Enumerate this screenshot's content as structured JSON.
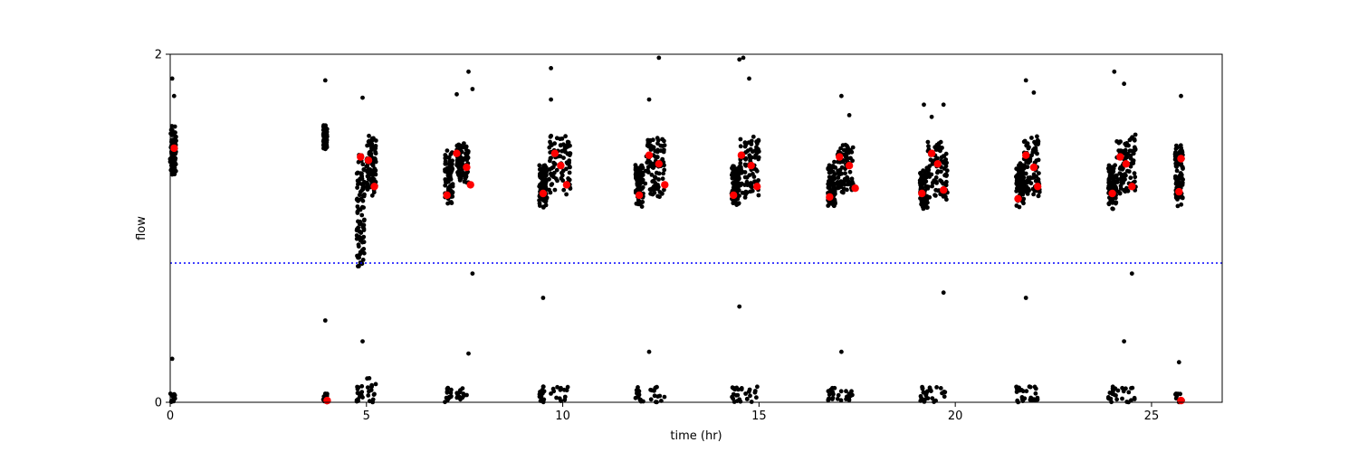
{
  "chart_data": {
    "type": "scatter",
    "xlabel": "time (hr)",
    "ylabel": "flow",
    "xlim": [
      0,
      26.8
    ],
    "ylim": [
      0,
      2
    ],
    "x_ticks": [
      0,
      5,
      10,
      15,
      20,
      25
    ],
    "x_tick_labels": [
      "0",
      "5",
      "10",
      "15",
      "20",
      "25"
    ],
    "y_ticks": [
      0,
      2
    ],
    "y_tick_labels": [
      "0",
      "2"
    ],
    "grid": false,
    "threshold_line": {
      "y": 0.8,
      "style": "dotted",
      "color": "#0000ff"
    },
    "colors": {
      "raw_points": "#000000",
      "mean_points": "#ff0000",
      "threshold": "#0000ff"
    },
    "raw_clusters": [
      {
        "x_start": 0.0,
        "x_end": 0.15,
        "high_min": 1.28,
        "high_max": 1.62,
        "low_max": 0.05
      },
      {
        "x_start": 3.9,
        "x_end": 4.0,
        "high_min": 1.45,
        "high_max": 1.6,
        "low_max": 0.05
      },
      {
        "x_start": 4.75,
        "x_end": 4.95,
        "high_min": 0.72,
        "high_max": 1.5,
        "low_max": 0.1
      },
      {
        "x_start": 5.0,
        "x_end": 5.25,
        "high_min": 1.15,
        "high_max": 1.55,
        "low_max": 0.15
      },
      {
        "x_start": 7.0,
        "x_end": 7.2,
        "high_min": 1.12,
        "high_max": 1.45,
        "low_max": 0.09
      },
      {
        "x_start": 7.3,
        "x_end": 7.6,
        "high_min": 1.25,
        "high_max": 1.5,
        "low_max": 0.09
      },
      {
        "x_start": 9.4,
        "x_end": 9.6,
        "high_min": 1.1,
        "high_max": 1.38,
        "low_max": 0.09
      },
      {
        "x_start": 9.65,
        "x_end": 10.2,
        "high_min": 1.18,
        "high_max": 1.55,
        "low_max": 0.09
      },
      {
        "x_start": 11.85,
        "x_end": 12.05,
        "high_min": 1.1,
        "high_max": 1.38,
        "low_max": 0.09
      },
      {
        "x_start": 12.1,
        "x_end": 12.6,
        "high_min": 1.15,
        "high_max": 1.55,
        "low_max": 0.09
      },
      {
        "x_start": 14.3,
        "x_end": 14.5,
        "high_min": 1.12,
        "high_max": 1.38,
        "low_max": 0.09
      },
      {
        "x_start": 14.5,
        "x_end": 15.0,
        "high_min": 1.15,
        "high_max": 1.55,
        "low_max": 0.09
      },
      {
        "x_start": 16.75,
        "x_end": 16.95,
        "high_min": 1.1,
        "high_max": 1.4,
        "low_max": 0.09
      },
      {
        "x_start": 17.0,
        "x_end": 17.4,
        "high_min": 1.18,
        "high_max": 1.5,
        "low_max": 0.09
      },
      {
        "x_start": 19.1,
        "x_end": 19.3,
        "high_min": 1.1,
        "high_max": 1.35,
        "low_max": 0.09
      },
      {
        "x_start": 19.3,
        "x_end": 19.8,
        "high_min": 1.15,
        "high_max": 1.55,
        "low_max": 0.09
      },
      {
        "x_start": 21.55,
        "x_end": 21.75,
        "high_min": 1.12,
        "high_max": 1.38,
        "low_max": 0.09
      },
      {
        "x_start": 21.75,
        "x_end": 22.15,
        "high_min": 1.15,
        "high_max": 1.55,
        "low_max": 0.09
      },
      {
        "x_start": 23.9,
        "x_end": 24.1,
        "high_min": 1.1,
        "high_max": 1.38,
        "low_max": 0.09
      },
      {
        "x_start": 24.1,
        "x_end": 24.6,
        "high_min": 1.15,
        "high_max": 1.55,
        "low_max": 0.09
      },
      {
        "x_start": 25.6,
        "x_end": 25.8,
        "high_min": 1.12,
        "high_max": 1.5,
        "low_max": 0.05
      }
    ],
    "raw_outliers": [
      {
        "x": 0.05,
        "y": 1.86
      },
      {
        "x": 0.1,
        "y": 1.76
      },
      {
        "x": 0.05,
        "y": 0.25
      },
      {
        "x": 3.95,
        "y": 1.85
      },
      {
        "x": 3.95,
        "y": 0.47
      },
      {
        "x": 4.9,
        "y": 1.75
      },
      {
        "x": 4.9,
        "y": 0.35
      },
      {
        "x": 7.3,
        "y": 1.77
      },
      {
        "x": 7.6,
        "y": 1.9
      },
      {
        "x": 7.7,
        "y": 1.8
      },
      {
        "x": 7.7,
        "y": 0.74
      },
      {
        "x": 7.6,
        "y": 0.28
      },
      {
        "x": 9.7,
        "y": 1.92
      },
      {
        "x": 9.7,
        "y": 1.74
      },
      {
        "x": 9.5,
        "y": 0.6
      },
      {
        "x": 12.2,
        "y": 1.74
      },
      {
        "x": 12.45,
        "y": 1.98
      },
      {
        "x": 12.2,
        "y": 0.29
      },
      {
        "x": 14.5,
        "y": 1.97
      },
      {
        "x": 14.6,
        "y": 1.98
      },
      {
        "x": 14.75,
        "y": 1.86
      },
      {
        "x": 14.5,
        "y": 0.55
      },
      {
        "x": 17.1,
        "y": 1.76
      },
      {
        "x": 17.3,
        "y": 1.65
      },
      {
        "x": 17.1,
        "y": 0.29
      },
      {
        "x": 19.2,
        "y": 1.71
      },
      {
        "x": 19.4,
        "y": 1.64
      },
      {
        "x": 19.7,
        "y": 1.71
      },
      {
        "x": 19.7,
        "y": 0.63
      },
      {
        "x": 21.8,
        "y": 1.85
      },
      {
        "x": 22.0,
        "y": 1.78
      },
      {
        "x": 21.8,
        "y": 0.6
      },
      {
        "x": 24.05,
        "y": 1.9
      },
      {
        "x": 24.3,
        "y": 1.83
      },
      {
        "x": 24.5,
        "y": 0.74
      },
      {
        "x": 24.3,
        "y": 0.35
      },
      {
        "x": 25.75,
        "y": 1.76
      },
      {
        "x": 25.7,
        "y": 0.23
      }
    ],
    "mean_points": [
      {
        "x": 0.1,
        "y": 1.46
      },
      {
        "x": 4.0,
        "y": 0.01
      },
      {
        "x": 4.85,
        "y": 1.41
      },
      {
        "x": 5.05,
        "y": 1.39
      },
      {
        "x": 5.2,
        "y": 1.24
      },
      {
        "x": 7.05,
        "y": 1.19
      },
      {
        "x": 7.3,
        "y": 1.43
      },
      {
        "x": 7.55,
        "y": 1.35
      },
      {
        "x": 7.65,
        "y": 1.25
      },
      {
        "x": 9.5,
        "y": 1.2
      },
      {
        "x": 9.8,
        "y": 1.43
      },
      {
        "x": 9.95,
        "y": 1.36
      },
      {
        "x": 10.1,
        "y": 1.25
      },
      {
        "x": 11.95,
        "y": 1.19
      },
      {
        "x": 12.2,
        "y": 1.42
      },
      {
        "x": 12.45,
        "y": 1.37
      },
      {
        "x": 12.6,
        "y": 1.25
      },
      {
        "x": 14.35,
        "y": 1.19
      },
      {
        "x": 14.55,
        "y": 1.42
      },
      {
        "x": 14.8,
        "y": 1.36
      },
      {
        "x": 14.95,
        "y": 1.24
      },
      {
        "x": 16.8,
        "y": 1.18
      },
      {
        "x": 17.05,
        "y": 1.41
      },
      {
        "x": 17.3,
        "y": 1.36
      },
      {
        "x": 17.45,
        "y": 1.23
      },
      {
        "x": 19.15,
        "y": 1.2
      },
      {
        "x": 19.4,
        "y": 1.43
      },
      {
        "x": 19.55,
        "y": 1.37
      },
      {
        "x": 19.7,
        "y": 1.22
      },
      {
        "x": 21.6,
        "y": 1.17
      },
      {
        "x": 21.8,
        "y": 1.42
      },
      {
        "x": 22.0,
        "y": 1.35
      },
      {
        "x": 22.1,
        "y": 1.24
      },
      {
        "x": 24.0,
        "y": 1.2
      },
      {
        "x": 24.2,
        "y": 1.41
      },
      {
        "x": 24.35,
        "y": 1.37
      },
      {
        "x": 24.5,
        "y": 1.24
      },
      {
        "x": 25.7,
        "y": 1.21
      },
      {
        "x": 25.75,
        "y": 1.4
      },
      {
        "x": 25.75,
        "y": 0.01
      }
    ]
  }
}
